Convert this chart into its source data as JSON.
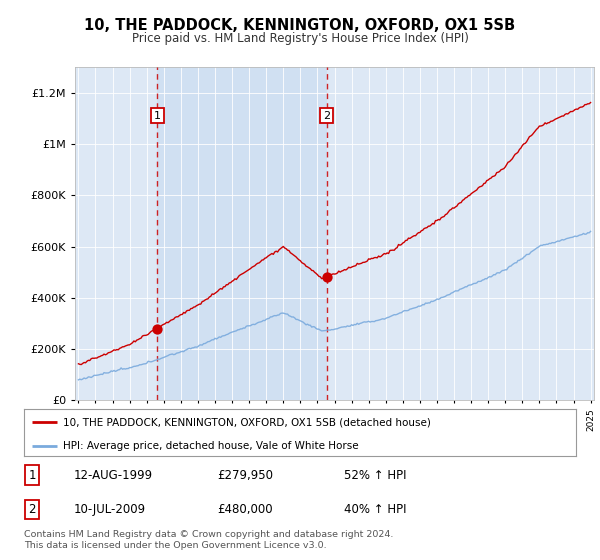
{
  "title": "10, THE PADDOCK, KENNINGTON, OXFORD, OX1 5SB",
  "subtitle": "Price paid vs. HM Land Registry's House Price Index (HPI)",
  "legend_line1": "10, THE PADDOCK, KENNINGTON, OXFORD, OX1 5SB (detached house)",
  "legend_line2": "HPI: Average price, detached house, Vale of White Horse",
  "purchase1_date": "12-AUG-1999",
  "purchase1_price": 279950,
  "purchase1_hpi": "52% ↑ HPI",
  "purchase2_date": "10-JUL-2009",
  "purchase2_price": 480000,
  "purchase2_hpi": "40% ↑ HPI",
  "footer": "Contains HM Land Registry data © Crown copyright and database right 2024.\nThis data is licensed under the Open Government Licence v3.0.",
  "background_color": "#ffffff",
  "plot_bg_color": "#dde8f5",
  "hpi_color": "#7aaadd",
  "price_color": "#cc0000",
  "vline_color": "#cc0000",
  "shade_color": "#ccddf0",
  "ylim": [
    0,
    1300000
  ],
  "yticks": [
    0,
    200000,
    400000,
    600000,
    800000,
    1000000,
    1200000
  ],
  "ytick_labels": [
    "£0",
    "£200K",
    "£400K",
    "£600K",
    "£800K",
    "£1M",
    "£1.2M"
  ],
  "xstart_year": 1995,
  "xend_year": 2025,
  "purchase1_year": 1999.622,
  "purchase2_year": 2009.536
}
